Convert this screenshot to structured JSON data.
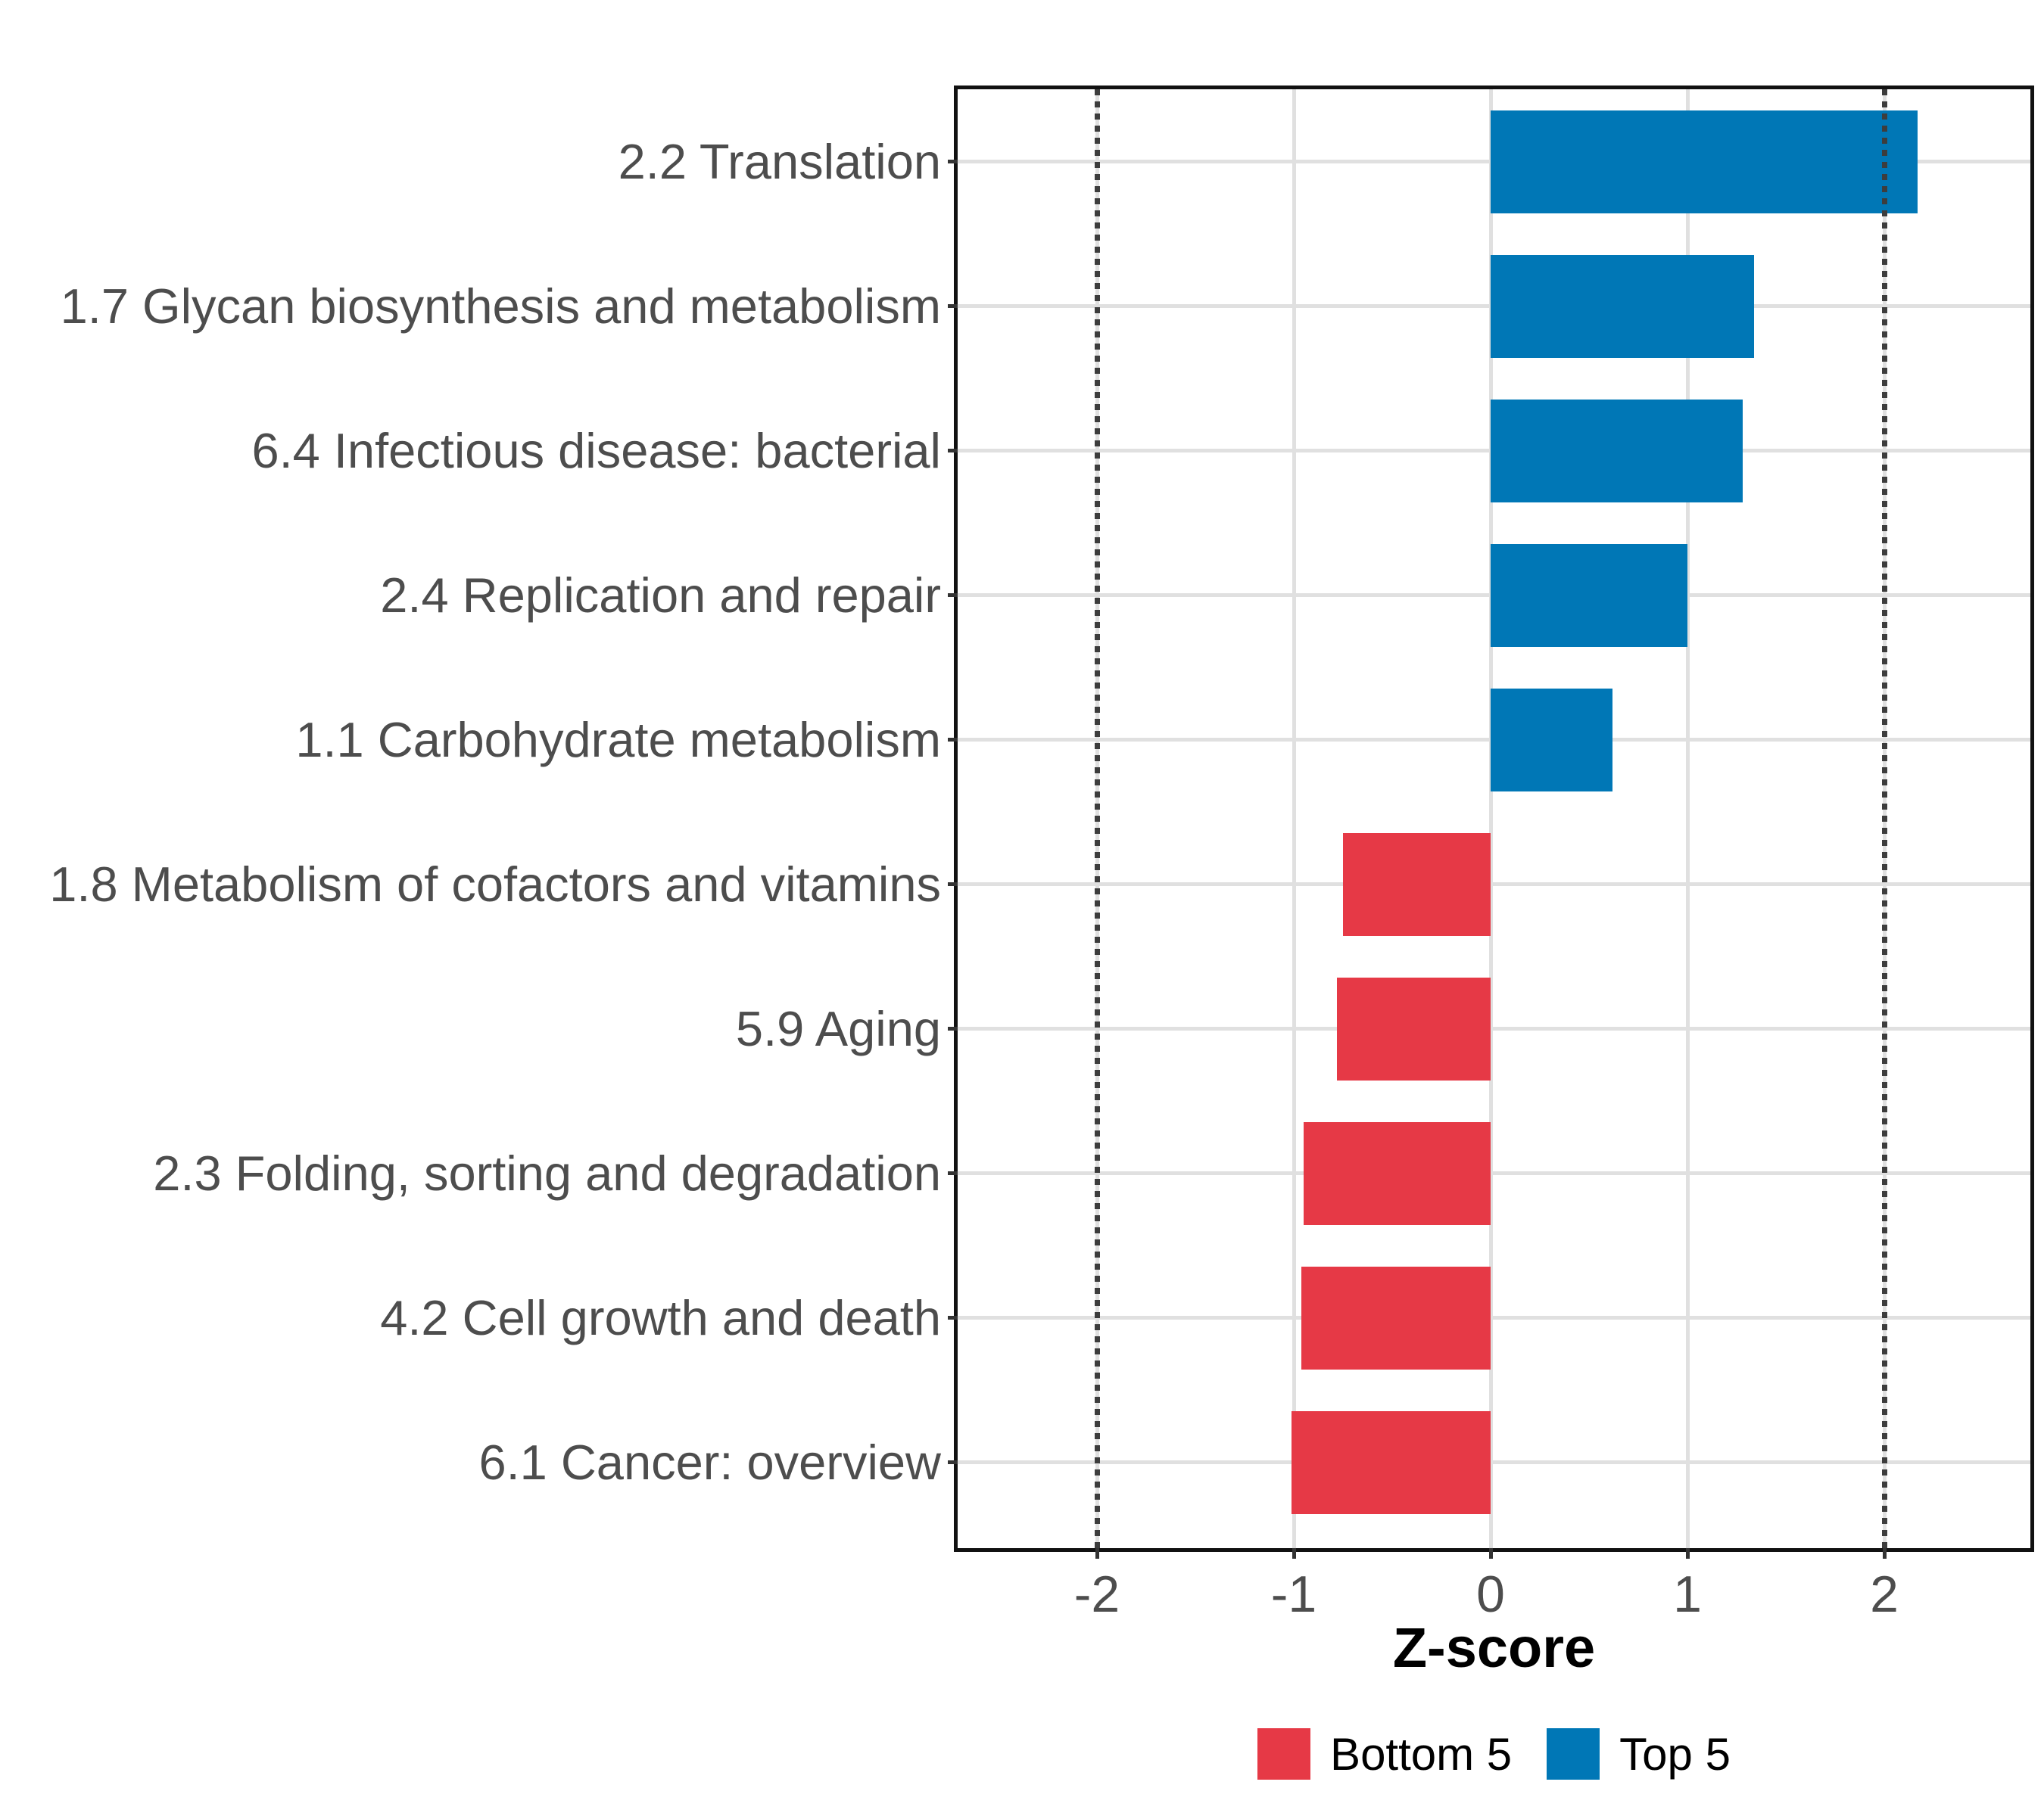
{
  "chart_data": {
    "type": "bar",
    "orientation": "horizontal",
    "title": "",
    "xlabel": "Z-score",
    "ylabel": "",
    "categories": [
      "2.2 Translation",
      "1.7 Glycan biosynthesis and metabolism",
      "6.4 Infectious disease: bacterial",
      "2.4 Replication and repair",
      "1.1 Carbohydrate metabolism",
      "1.8 Metabolism of cofactors and vitamins",
      "5.9 Aging",
      "2.3 Folding, sorting and degradation",
      "4.2 Cell growth and death",
      "6.1 Cancer: overview"
    ],
    "values": [
      2.17,
      1.34,
      1.28,
      1.0,
      0.62,
      -0.75,
      -0.78,
      -0.95,
      -0.96,
      -1.01
    ],
    "groups": [
      "Top 5",
      "Top 5",
      "Top 5",
      "Top 5",
      "Top 5",
      "Bottom 5",
      "Bottom 5",
      "Bottom 5",
      "Bottom 5",
      "Bottom 5"
    ],
    "x_ticks": [
      "-2",
      "-1",
      "0",
      "1",
      "2"
    ],
    "x_tick_values": [
      -2,
      -1,
      0,
      1,
      2
    ],
    "xlim": [
      -2.7,
      2.73
    ],
    "reference_lines": [
      -2,
      2
    ],
    "grid": "major",
    "legend_position": "bottom",
    "legend": [
      {
        "label": "Bottom 5",
        "color": "#E63946"
      },
      {
        "label": "Top 5",
        "color": "#0077B6"
      }
    ],
    "colors": {
      "top5_bar": "#0077B6",
      "bottom5_bar": "#E63946",
      "axis_text": "#4d4d4d",
      "axis_title": "#000000",
      "panel_border": "#111111",
      "gridline": "#e0e0e0",
      "reference_line": "#3d3d3d",
      "tick_mark": "#333333"
    }
  }
}
